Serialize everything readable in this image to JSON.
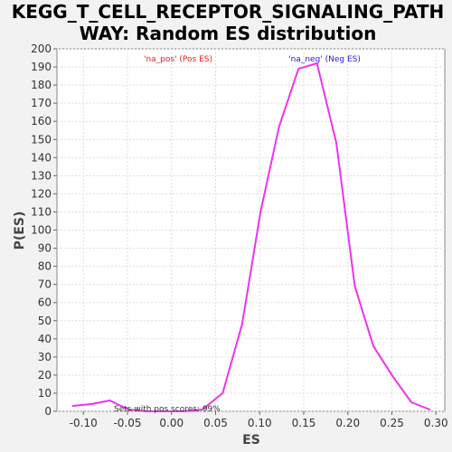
{
  "chart_data": {
    "type": "line",
    "title": "KEGG_T_CELL_RECEPTOR_SIGNALING_PATHWAY: Random ES distribution",
    "title_lines": [
      "KEGG_T_CELL_RECEPTOR_SIGNALING_PATH",
      "WAY: Random ES distribution"
    ],
    "xlabel": "ES",
    "ylabel": "P(ES)",
    "xlim": [
      -0.13,
      0.31
    ],
    "ylim": [
      0,
      200
    ],
    "x_ticks": [
      -0.1,
      -0.05,
      0.0,
      0.05,
      0.1,
      0.15,
      0.2,
      0.25,
      0.3
    ],
    "x_tick_labels": [
      "-0.10",
      "-0.05",
      "0.00",
      "0.05",
      "0.10",
      "0.15",
      "0.20",
      "0.25",
      "0.30"
    ],
    "y_ticks": [
      0,
      10,
      20,
      30,
      40,
      50,
      60,
      70,
      80,
      90,
      100,
      110,
      120,
      130,
      140,
      150,
      160,
      170,
      180,
      190,
      200
    ],
    "grid": true,
    "annotations": {
      "pos_label": "'na_pos' (Pos ES)",
      "neg_label": "'na_neg' (Neg ES)",
      "pos_color": "#e02020",
      "neg_color": "#2020cc",
      "sets_text": "Sets with pos scores: 99%"
    },
    "series": [
      {
        "color": "#ee33ee",
        "x": [
          -0.112,
          -0.091,
          -0.07,
          -0.049,
          -0.028,
          -0.007,
          0.014,
          0.035,
          0.058,
          0.08,
          0.101,
          0.122,
          0.144,
          0.165,
          0.187,
          0.208,
          0.229,
          0.25,
          0.272,
          0.293
        ],
        "y": [
          3,
          4,
          6,
          1,
          0,
          0,
          0,
          1,
          10,
          48,
          110,
          157,
          189,
          192,
          148,
          69,
          36,
          20,
          5,
          1
        ]
      }
    ]
  }
}
